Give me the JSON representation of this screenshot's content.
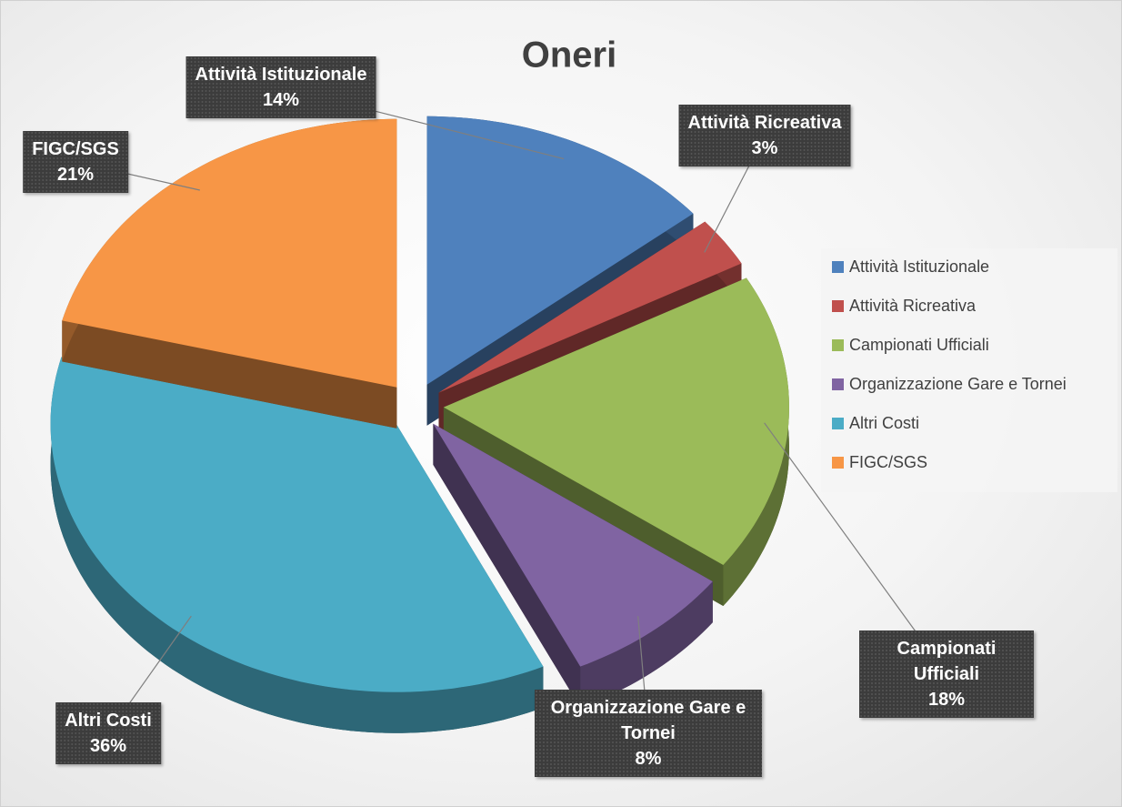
{
  "chart_data": {
    "type": "pie",
    "title": "Oneri",
    "categories": [
      "Attività Istituzionale",
      "Attività Ricreativa",
      "Campionati Ufficiali",
      "Organizzazione Gare e Tornei",
      "Altri Costi",
      "FIGC/SGS"
    ],
    "values": [
      14,
      3,
      18,
      8,
      36,
      21
    ],
    "value_labels": [
      "14%",
      "3%",
      "18%",
      "8%",
      "36%",
      "21%"
    ],
    "colors": [
      "#4f81bd",
      "#c0504d",
      "#9bbb59",
      "#8064a2",
      "#4bacc6",
      "#f79646"
    ],
    "legend": "right"
  }
}
